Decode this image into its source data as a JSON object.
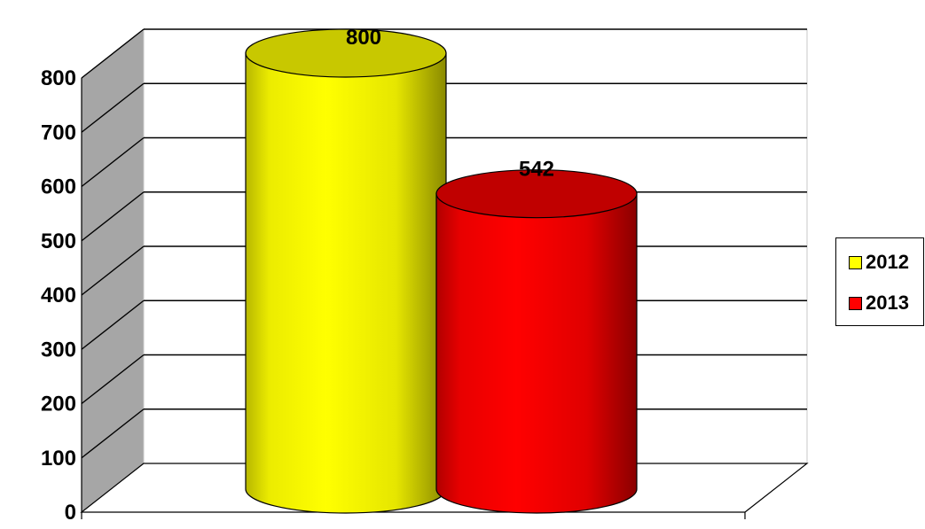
{
  "chart_data": {
    "type": "bar",
    "style": "3d-cylinder",
    "categories": [
      ""
    ],
    "series": [
      {
        "name": "2012",
        "values": [
          800
        ],
        "color": "#ffff00",
        "label": "800"
      },
      {
        "name": "2013",
        "values": [
          542
        ],
        "color": "#ff0000",
        "label": "542"
      }
    ],
    "title": "",
    "xlabel": "",
    "ylabel": "",
    "ylim": [
      0,
      800
    ],
    "yticks": [
      "0",
      "100",
      "200",
      "300",
      "400",
      "500",
      "600",
      "700",
      "800"
    ],
    "grid": true,
    "legend_position": "right",
    "colors": {
      "wall": "#a6a6a6",
      "grid": "#000000"
    }
  }
}
